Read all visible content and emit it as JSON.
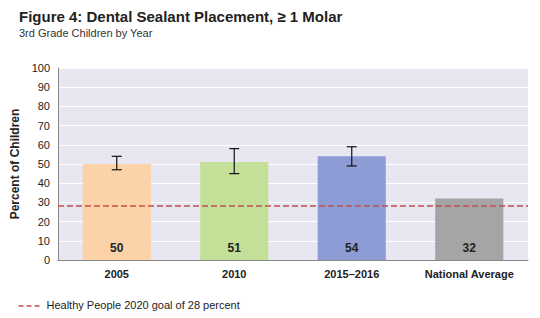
{
  "chart_data": {
    "type": "bar",
    "title": "Figure 4: Dental Sealant Placement, ≥ 1 Molar",
    "subtitle": "3rd Grade Children by Year",
    "y_label": "Percent of Children",
    "categories": [
      "2005",
      "2010",
      "2015–2016",
      "National Average"
    ],
    "values": [
      50,
      51,
      54,
      32
    ],
    "colors": [
      "#fcd3a9",
      "#c4df97",
      "#8d9cd5",
      "#a5a5a5"
    ],
    "error_low": [
      47,
      45,
      49,
      null
    ],
    "error_high": [
      54,
      58,
      59,
      null
    ],
    "goal": {
      "value": 28,
      "label": "Healthy People 2020 goal of 28 percent",
      "color": "#c0504d",
      "line_style": "dashed"
    },
    "ylim": [
      0,
      100
    ],
    "yticks": [
      0,
      10,
      20,
      30,
      40,
      50,
      60,
      70,
      80,
      90,
      100
    ],
    "grid": true,
    "data_labels": true
  }
}
